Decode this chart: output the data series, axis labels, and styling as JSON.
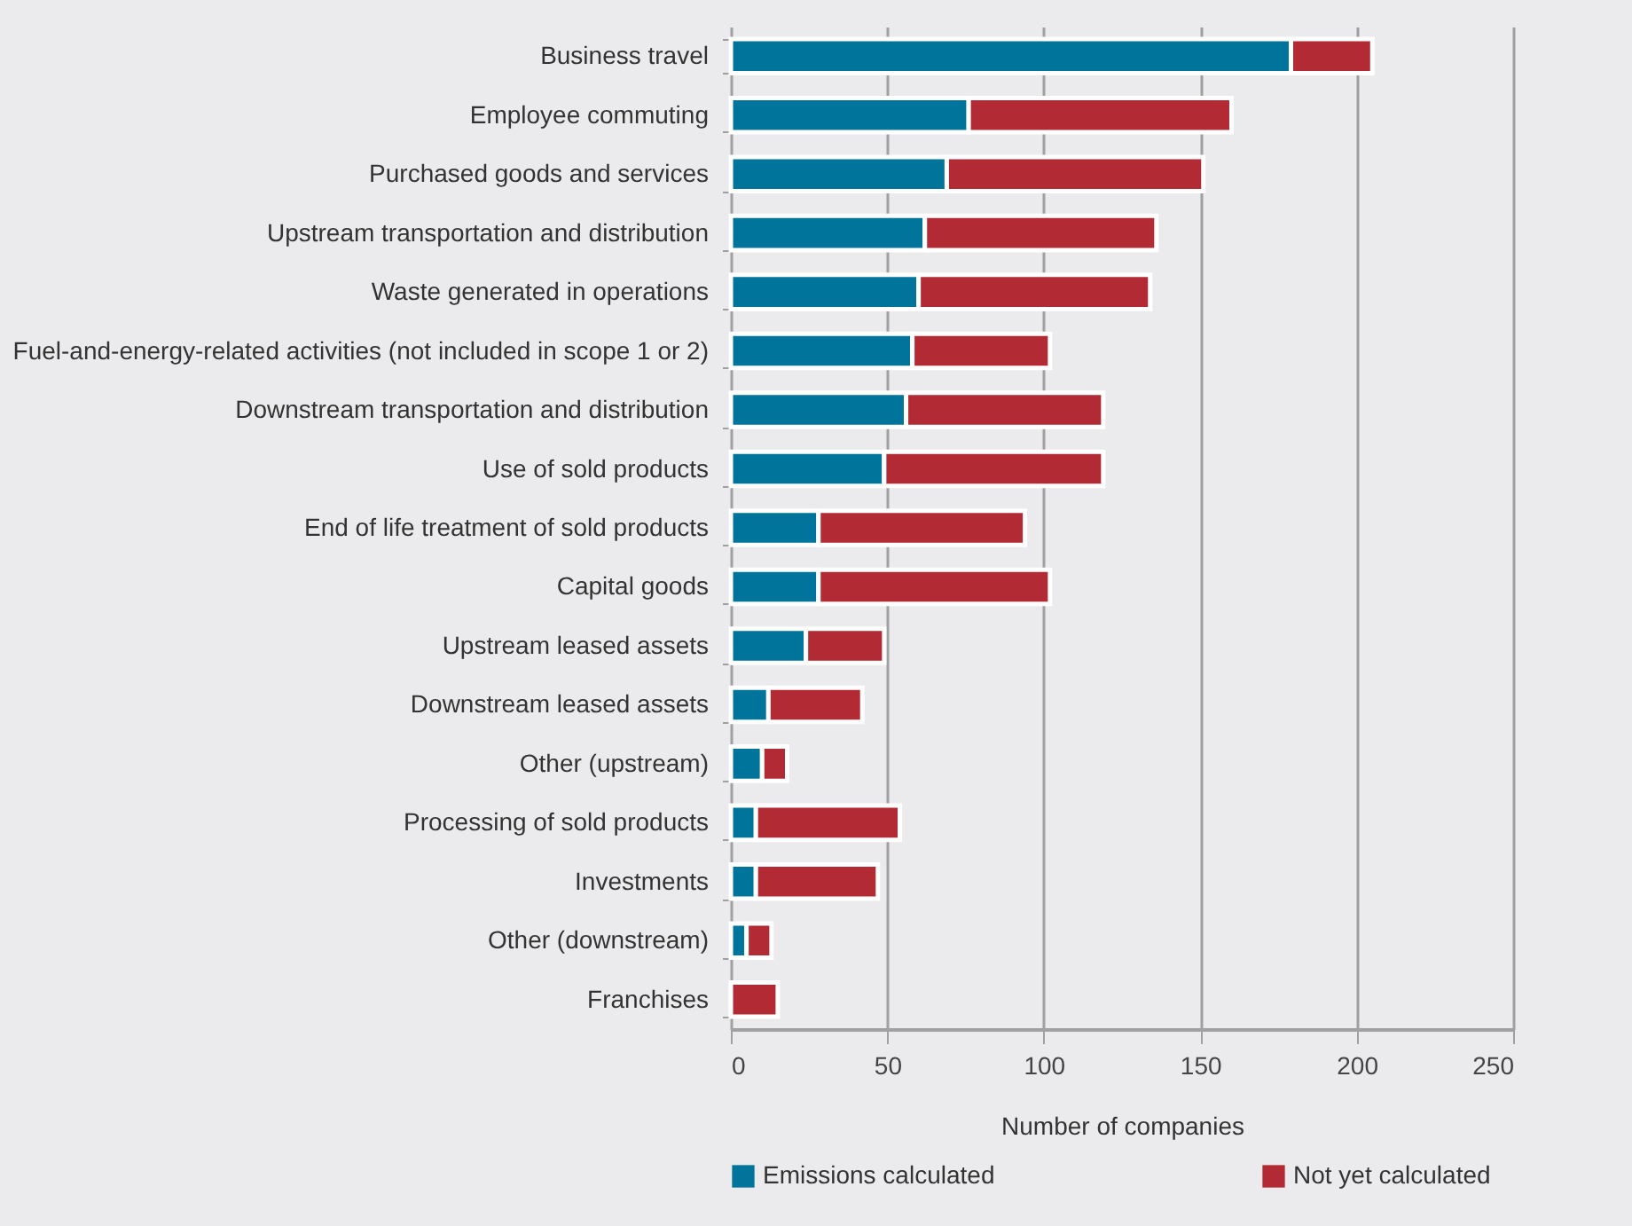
{
  "chart_data": {
    "type": "bar",
    "orientation": "horizontal",
    "stacked": true,
    "categories": [
      "Business travel",
      "Employee commuting",
      "Purchased goods and services",
      "Upstream transportation and distribution",
      "Waste generated in operations",
      "Fuel-and-energy-related activities (not included in scope 1 or 2)",
      "Downstream transportation and distribution",
      "Use of sold products",
      "End of life treatment of sold products",
      "Capital goods",
      "Upstream leased assets",
      "Downstream leased assets",
      "Other (upstream)",
      "Processing of sold products",
      "Investments",
      "Other (downstream)",
      "Franchises"
    ],
    "series": [
      {
        "name": "Emissions calculated",
        "color": "#00749a",
        "values": [
          179,
          76,
          69,
          62,
          60,
          58,
          56,
          49,
          28,
          28,
          24,
          12,
          10,
          8,
          8,
          5,
          0
        ]
      },
      {
        "name": "Not yet calculated",
        "color": "#b22a33",
        "values": [
          26,
          84,
          82,
          74,
          74,
          44,
          63,
          70,
          66,
          74,
          25,
          30,
          8,
          46,
          39,
          8,
          15
        ]
      }
    ],
    "xlabel": "Number of companies",
    "xlim": [
      0,
      250
    ],
    "xticks": [
      0,
      50,
      100,
      150,
      200,
      250
    ],
    "grid": "x",
    "legend": "bottom"
  }
}
